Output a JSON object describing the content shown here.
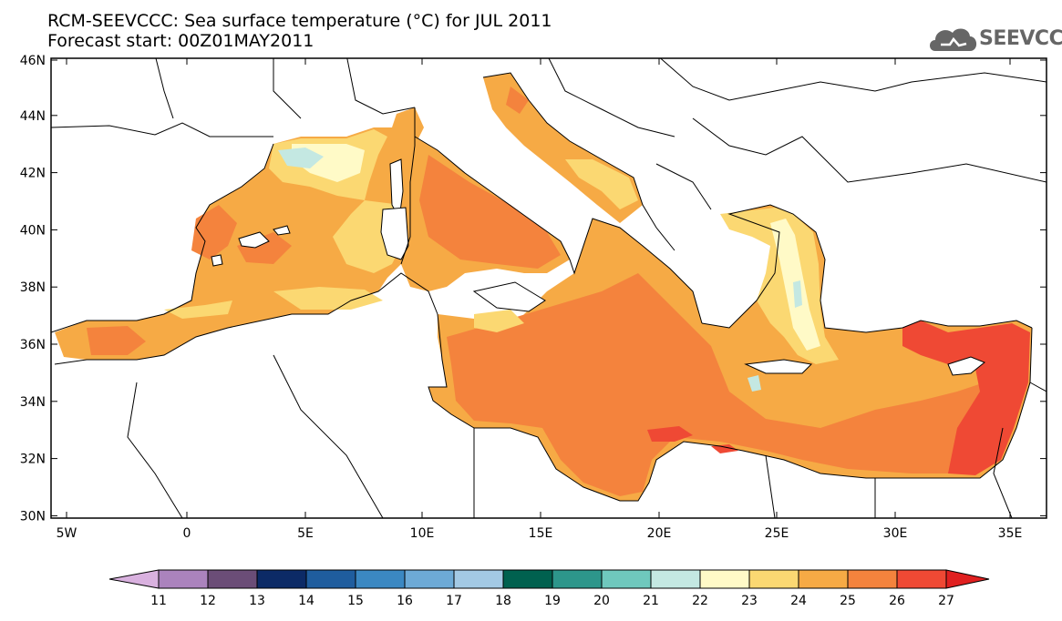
{
  "header": {
    "title_line1": "RCM-SEEVCCC: Sea surface temperature (°C) for JUL 2011",
    "title_line2": "Forecast start: 00Z01MAY2011",
    "logo_text": "SEEVCCC"
  },
  "map": {
    "lat_labels": [
      "46N",
      "44N",
      "42N",
      "40N",
      "38N",
      "36N",
      "34N",
      "32N",
      "30N"
    ],
    "lon_labels": [
      "5W",
      "0",
      "5E",
      "10E",
      "15E",
      "20E",
      "25E",
      "30E",
      "35E"
    ]
  },
  "colorbar": {
    "labels": [
      "11",
      "12",
      "13",
      "14",
      "15",
      "16",
      "17",
      "18",
      "19",
      "20",
      "21",
      "22",
      "23",
      "24",
      "25",
      "26",
      "27"
    ],
    "colors": [
      "#d9b1df",
      "#ab83bd",
      "#6b4d77",
      "#0c2a66",
      "#1f5d9e",
      "#3b88c2",
      "#6daad6",
      "#a3c9e4",
      "#00614f",
      "#2d968b",
      "#6fc8bd",
      "#c4e8e2",
      "#fffac7",
      "#fbd872",
      "#f6aa45",
      "#f4833d",
      "#ef4934",
      "#e02020"
    ]
  },
  "colors": {
    "land": "#ffffff",
    "coast": "#000000",
    "sea_base": "#f6aa45",
    "logo": "#666666"
  }
}
